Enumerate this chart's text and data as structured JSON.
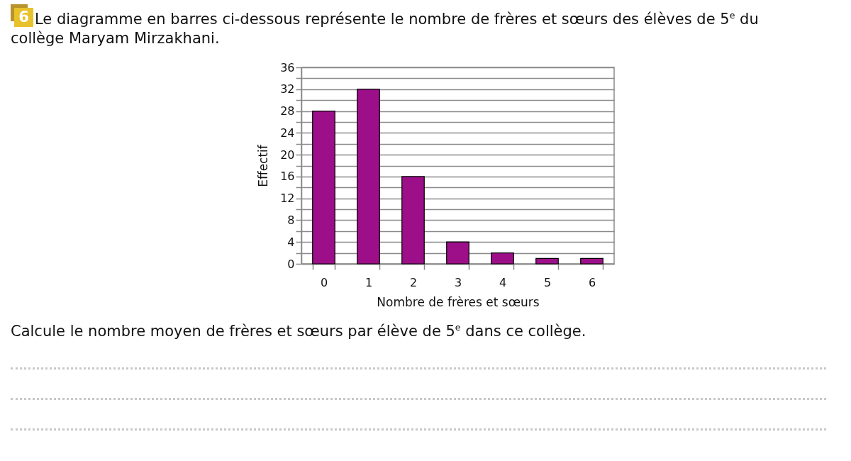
{
  "chart_data": {
    "type": "bar",
    "title": "Le diagramme en barres ci-dessous représente le nombre de frères et sœurs des élèves de 5$^{e}$ du collège Maryam Mirzakhani.",
    "xlabel": "Nombre de frères et sœurs",
    "ylabel": "Effectif",
    "annotations": [
      "6",
      "Calcule le nombre moyen de frères et sœurs par élève de 5$^{e}$ dans ce collège."
    ],
    "categories": [
      "0",
      "1",
      "2",
      "3",
      "4",
      "5",
      "6"
    ],
    "values": [
      28,
      32,
      16,
      4,
      2,
      1,
      1
    ],
    "color": "#9c0f88",
    "ylim": [
      0,
      36
    ],
    "yticks": [
      0,
      {
        "value": 2,
        "label": null
      },
      4,
      {
        "value": 6,
        "label": null
      },
      8,
      {
        "value": 10,
        "label": null
      },
      12,
      {
        "value": 14,
        "label": null
      },
      16,
      {
        "value": 18,
        "label": null
      },
      20,
      {
        "value": 22,
        "label": null
      },
      24,
      {
        "value": 26,
        "label": null
      },
      28,
      {
        "value": 30,
        "label": null
      },
      32,
      {
        "value": 34,
        "label": null
      },
      36
    ],
    "grid": "y"
  }
}
